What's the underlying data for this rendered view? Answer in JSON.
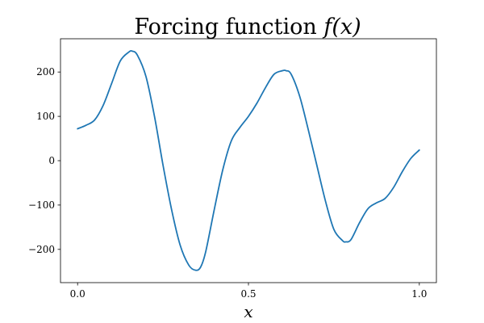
{
  "chart_data": {
    "type": "line",
    "title_text": "Forcing function ",
    "title_math": "f(x)",
    "xlabel": "x",
    "ylabel": "",
    "xlim": [
      -0.05,
      1.05
    ],
    "ylim": [
      -275,
      275
    ],
    "xticks": [
      0.0,
      0.5,
      1.0
    ],
    "xtick_labels": [
      "0.0",
      "0.5",
      "1.0"
    ],
    "yticks": [
      -200,
      -100,
      0,
      100,
      200
    ],
    "ytick_labels": [
      "−200",
      "−100",
      "0",
      "100",
      "200"
    ],
    "grid": false,
    "line_color": "#1f77b4",
    "series": [
      {
        "x": [
          0.0,
          0.025,
          0.05,
          0.075,
          0.1,
          0.125,
          0.15,
          0.16,
          0.175,
          0.2,
          0.225,
          0.25,
          0.275,
          0.3,
          0.325,
          0.345,
          0.36,
          0.375,
          0.4,
          0.425,
          0.45,
          0.475,
          0.5,
          0.525,
          0.55,
          0.575,
          0.6,
          0.61,
          0.625,
          0.65,
          0.675,
          0.7,
          0.725,
          0.75,
          0.775,
          0.785,
          0.8,
          0.825,
          0.85,
          0.875,
          0.9,
          0.925,
          0.95,
          0.975,
          1.0
        ],
        "y": [
          72,
          80,
          92,
          125,
          175,
          225,
          245,
          247,
          238,
          190,
          100,
          -10,
          -110,
          -190,
          -235,
          -247,
          -240,
          -205,
          -110,
          -20,
          45,
          75,
          100,
          130,
          165,
          195,
          203,
          203,
          195,
          145,
          70,
          -10,
          -90,
          -155,
          -180,
          -183,
          -178,
          -140,
          -108,
          -95,
          -85,
          -60,
          -25,
          5,
          24
        ]
      }
    ]
  }
}
